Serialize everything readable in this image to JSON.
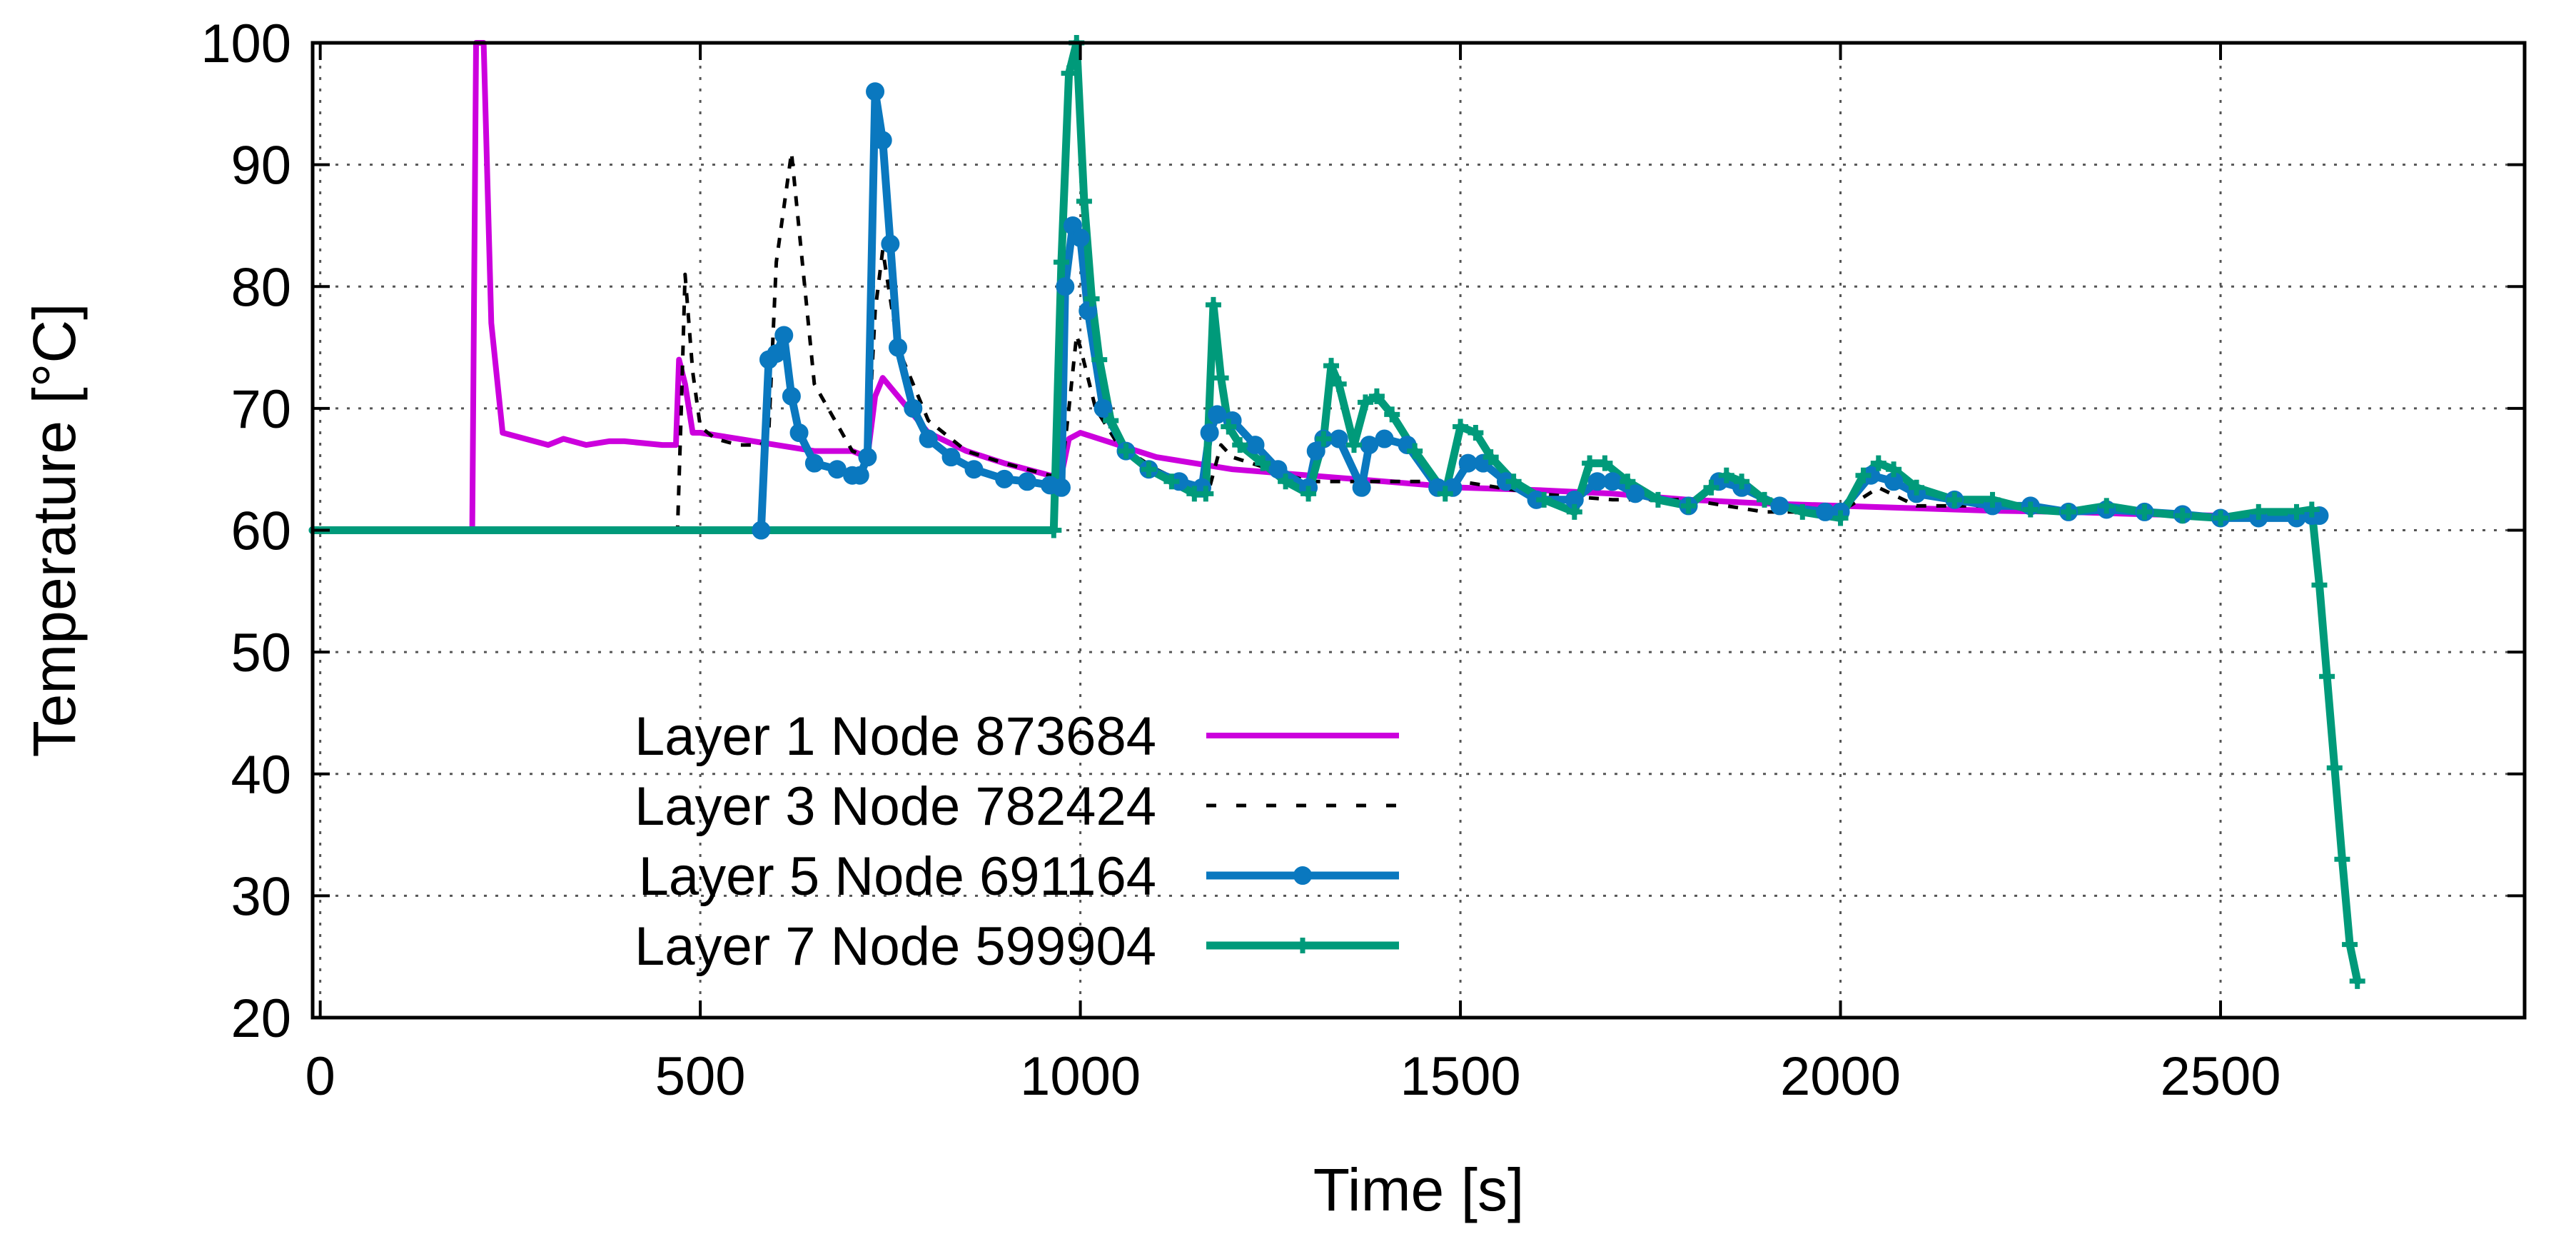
{
  "chart_data": {
    "type": "line",
    "title": "",
    "xlabel": "Time [s]",
    "ylabel": "Temperature [°C]",
    "xlim": [
      -10,
      2900
    ],
    "ylim": [
      20,
      100
    ],
    "x_ticks": [
      0,
      500,
      1000,
      1500,
      2000,
      2500
    ],
    "y_ticks": [
      20,
      30,
      40,
      50,
      60,
      70,
      80,
      90,
      100
    ],
    "grid": true,
    "legend_position": "bottom-left",
    "series": [
      {
        "name": "Layer 1 Node 873684",
        "color": "#cc00dd",
        "style": "solid",
        "marker": "none",
        "x": [
          -10,
          200,
          205,
          215,
          225,
          240,
          300,
          320,
          350,
          380,
          400,
          450,
          468,
          472,
          480,
          490,
          500,
          550,
          600,
          650,
          700,
          720,
          730,
          740,
          760,
          800,
          850,
          900,
          960,
          975,
          985,
          1000,
          1050,
          1100,
          1200,
          1300,
          1400,
          1500,
          1600,
          1700,
          1800,
          1900,
          2000,
          2100,
          2200,
          2300,
          2400,
          2500,
          2560,
          2600,
          2620,
          2630
        ],
        "y": [
          60,
          60,
          100,
          100,
          77,
          68,
          67,
          67.5,
          67,
          67.3,
          67.3,
          67,
          67,
          74,
          72,
          68,
          68,
          67.5,
          67,
          66.5,
          66.5,
          66,
          71,
          72.5,
          71,
          68,
          66.5,
          65.5,
          64.5,
          64.5,
          67.5,
          68,
          67,
          66,
          65,
          64.5,
          64,
          63.5,
          63.3,
          63,
          62.5,
          62.2,
          62,
          61.8,
          61.6,
          61.5,
          61.3,
          61.2,
          61,
          61,
          61.2,
          61.2
        ]
      },
      {
        "name": "Layer 3 Node 782424",
        "color": "#000000",
        "style": "dashed",
        "marker": "none",
        "x": [
          -10,
          470,
          475,
          480,
          490,
          500,
          520,
          550,
          580,
          590,
          600,
          620,
          650,
          700,
          720,
          730,
          740,
          760,
          800,
          850,
          900,
          960,
          975,
          985,
          995,
          1000,
          1020,
          1050,
          1100,
          1150,
          1170,
          1185,
          1200,
          1300,
          1400,
          1500,
          1600,
          1700,
          1800,
          1900,
          2000,
          2050,
          2100,
          2200,
          2300,
          2400,
          2500,
          2600,
          2630
        ],
        "y": [
          60,
          60,
          70,
          81,
          73,
          68.5,
          67.5,
          67,
          67,
          68,
          82,
          91,
          72,
          66.5,
          66,
          78,
          83,
          75,
          69,
          66.5,
          65.5,
          64.5,
          64.5,
          70,
          76,
          75,
          70,
          67,
          65,
          63.5,
          63.5,
          67,
          66,
          64,
          64,
          64,
          63,
          62.5,
          62.5,
          61.5,
          61.5,
          63.5,
          62,
          62,
          61.5,
          61.5,
          61,
          61,
          61.2
        ]
      },
      {
        "name": "Layer 5 Node 691164",
        "color": "#0a78bf",
        "style": "solid",
        "marker": "circle",
        "x": [
          -10,
          580,
          590,
          600,
          610,
          620,
          630,
          650,
          680,
          700,
          710,
          720,
          730,
          740,
          750,
          760,
          780,
          800,
          830,
          860,
          900,
          930,
          960,
          975,
          980,
          990,
          1000,
          1010,
          1030,
          1060,
          1090,
          1130,
          1160,
          1170,
          1180,
          1200,
          1230,
          1260,
          1300,
          1310,
          1320,
          1340,
          1370,
          1380,
          1400,
          1430,
          1470,
          1490,
          1510,
          1530,
          1560,
          1600,
          1650,
          1680,
          1700,
          1730,
          1800,
          1840,
          1870,
          1920,
          1980,
          2000,
          2040,
          2070,
          2100,
          2150,
          2200,
          2250,
          2300,
          2350,
          2400,
          2450,
          2500,
          2550,
          2600,
          2620,
          2630
        ],
        "y": [
          60,
          60,
          74,
          74.5,
          76,
          71,
          68,
          65.5,
          65,
          64.5,
          64.5,
          66,
          96,
          92,
          83.5,
          75,
          70,
          67.5,
          66,
          65,
          64.2,
          64,
          63.7,
          63.5,
          80,
          85,
          84,
          78,
          70,
          66.5,
          65,
          64,
          63.5,
          68,
          69.5,
          69,
          67,
          65,
          63.5,
          66.5,
          67.5,
          67.5,
          63.5,
          67,
          67.5,
          67,
          63.5,
          63.5,
          65.5,
          65.5,
          64,
          62.5,
          62.5,
          64,
          64,
          63,
          62,
          64,
          63.5,
          62,
          61.5,
          61.5,
          64.5,
          64,
          63,
          62.5,
          62,
          62,
          61.5,
          61.7,
          61.5,
          61.3,
          61,
          61,
          61,
          61.2,
          61.2
        ]
      },
      {
        "name": "Layer 7 Node 599904",
        "color": "#009a7a",
        "style": "solid",
        "marker": "plus",
        "x": [
          -10,
          965,
          975,
          985,
          995,
          1005,
          1015,
          1025,
          1040,
          1060,
          1090,
          1120,
          1150,
          1165,
          1175,
          1185,
          1195,
          1210,
          1240,
          1270,
          1300,
          1320,
          1330,
          1340,
          1360,
          1375,
          1390,
          1410,
          1440,
          1480,
          1500,
          1520,
          1540,
          1570,
          1610,
          1650,
          1670,
          1690,
          1720,
          1760,
          1800,
          1830,
          1850,
          1870,
          1900,
          1950,
          2000,
          2030,
          2050,
          2070,
          2100,
          2150,
          2200,
          2250,
          2300,
          2350,
          2400,
          2450,
          2500,
          2550,
          2600,
          2620,
          2630,
          2640,
          2650,
          2660,
          2670,
          2680
        ],
        "y": [
          60,
          60,
          82,
          97.5,
          100,
          87,
          79,
          74,
          69,
          66.5,
          65,
          64,
          63,
          63,
          78.5,
          72.5,
          68.5,
          67,
          65.5,
          64,
          63,
          67.5,
          73.5,
          72,
          67,
          70.5,
          71,
          69.5,
          66.5,
          63,
          68.5,
          68,
          66,
          64,
          62.5,
          61.5,
          65.5,
          65.5,
          64,
          62.5,
          62,
          63.5,
          64.5,
          64,
          62.5,
          61.5,
          61,
          64.5,
          65.5,
          65,
          63.5,
          62.5,
          62.5,
          61.7,
          61.5,
          62,
          61.5,
          61.2,
          61,
          61.5,
          61.5,
          61.7,
          55.5,
          48,
          40.5,
          33,
          26,
          23
        ]
      }
    ]
  }
}
